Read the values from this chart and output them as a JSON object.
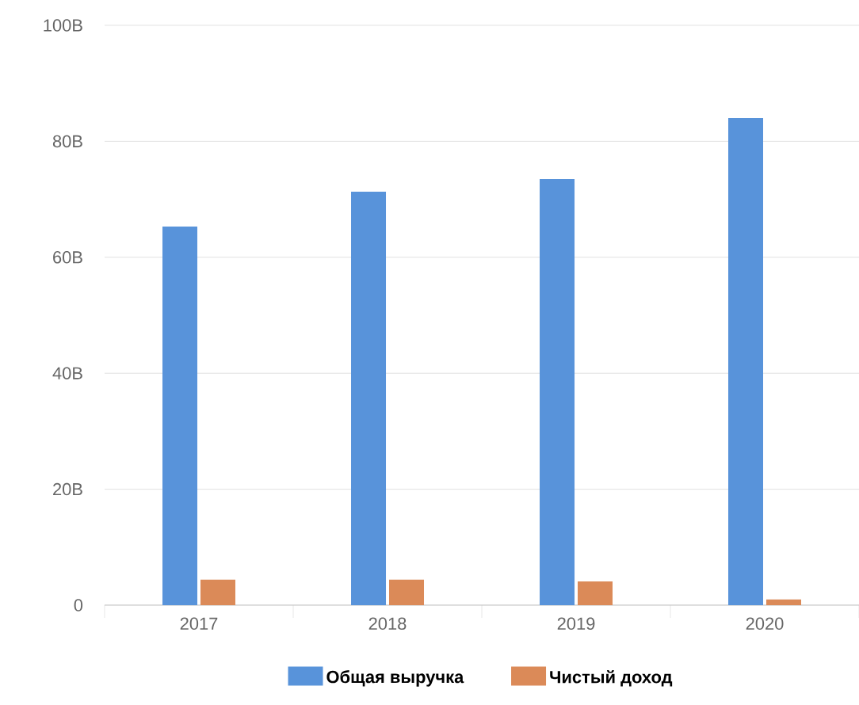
{
  "chart_data": {
    "type": "bar",
    "categories": [
      "2017",
      "2018",
      "2019",
      "2020"
    ],
    "series": [
      {
        "name": "Общая выручка",
        "color": "#5893da",
        "values": [
          65.3,
          71.3,
          73.5,
          84.0
        ]
      },
      {
        "name": "Чистый доход",
        "color": "#db8a58",
        "values": [
          4.4,
          4.4,
          4.1,
          1.0
        ]
      }
    ],
    "ylim": [
      0,
      100
    ],
    "yticks": [
      {
        "value": 0,
        "label": "0"
      },
      {
        "value": 20,
        "label": "20B"
      },
      {
        "value": 40,
        "label": "40B"
      },
      {
        "value": 60,
        "label": "60B"
      },
      {
        "value": 80,
        "label": "80B"
      },
      {
        "value": 100,
        "label": "100B"
      }
    ],
    "grid": "y",
    "legend": "bottom"
  }
}
